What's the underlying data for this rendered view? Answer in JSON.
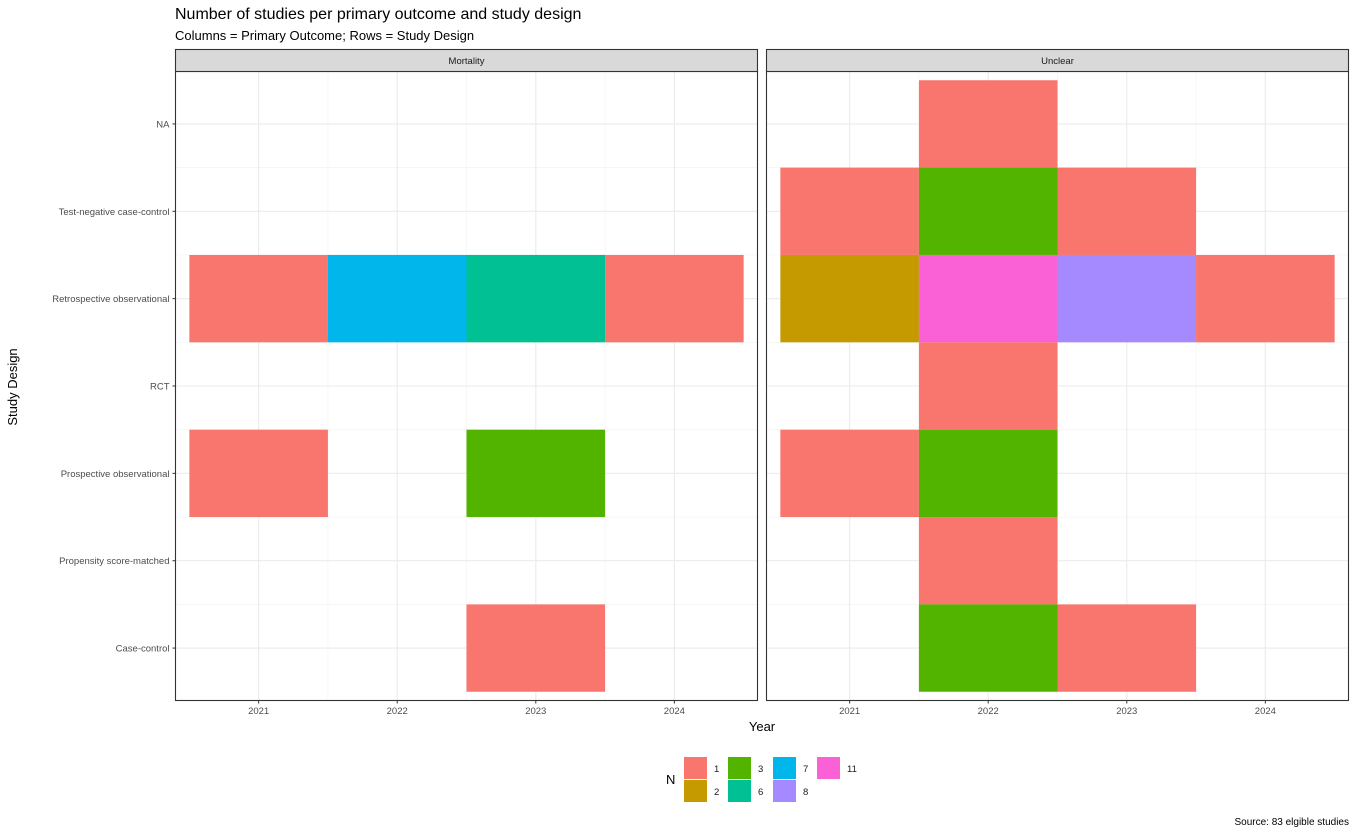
{
  "chart_data": {
    "type": "heatmap",
    "title": "Number of studies per primary outcome and study design",
    "subtitle": "Columns = Primary Outcome; Rows = Study Design",
    "xlabel": "Year",
    "ylabel": "Study Design",
    "caption": "Source: 83 elgible studies",
    "facets": [
      "Mortality",
      "Unclear"
    ],
    "x_categories": [
      "2021",
      "2022",
      "2023",
      "2024"
    ],
    "y_categories": [
      "NA",
      "Test-negative case-control",
      "Retrospective observational",
      "RCT",
      "Prospective observational",
      "Propensity score-matched",
      "Case-control"
    ],
    "legend": {
      "title": "N",
      "position": "bottom",
      "entries": [
        {
          "label": "1",
          "color": "#F8766D"
        },
        {
          "label": "2",
          "color": "#C49A00"
        },
        {
          "label": "3",
          "color": "#53B400"
        },
        {
          "label": "6",
          "color": "#00C094"
        },
        {
          "label": "7",
          "color": "#00B6EB"
        },
        {
          "label": "8",
          "color": "#A58AFF"
        },
        {
          "label": "11",
          "color": "#FB61D7"
        }
      ]
    },
    "grid": true,
    "cells": [
      {
        "facet": "Mortality",
        "x": "2021",
        "y": "Retrospective observational",
        "n": "1"
      },
      {
        "facet": "Mortality",
        "x": "2022",
        "y": "Retrospective observational",
        "n": "7"
      },
      {
        "facet": "Mortality",
        "x": "2023",
        "y": "Retrospective observational",
        "n": "6"
      },
      {
        "facet": "Mortality",
        "x": "2024",
        "y": "Retrospective observational",
        "n": "1"
      },
      {
        "facet": "Mortality",
        "x": "2021",
        "y": "Prospective observational",
        "n": "1"
      },
      {
        "facet": "Mortality",
        "x": "2023",
        "y": "Prospective observational",
        "n": "3"
      },
      {
        "facet": "Mortality",
        "x": "2023",
        "y": "Case-control",
        "n": "1"
      },
      {
        "facet": "Unclear",
        "x": "2022",
        "y": "NA",
        "n": "1"
      },
      {
        "facet": "Unclear",
        "x": "2021",
        "y": "Test-negative case-control",
        "n": "1"
      },
      {
        "facet": "Unclear",
        "x": "2022",
        "y": "Test-negative case-control",
        "n": "3"
      },
      {
        "facet": "Unclear",
        "x": "2023",
        "y": "Test-negative case-control",
        "n": "1"
      },
      {
        "facet": "Unclear",
        "x": "2021",
        "y": "Retrospective observational",
        "n": "2"
      },
      {
        "facet": "Unclear",
        "x": "2022",
        "y": "Retrospective observational",
        "n": "11"
      },
      {
        "facet": "Unclear",
        "x": "2023",
        "y": "Retrospective observational",
        "n": "8"
      },
      {
        "facet": "Unclear",
        "x": "2024",
        "y": "Retrospective observational",
        "n": "1"
      },
      {
        "facet": "Unclear",
        "x": "2022",
        "y": "RCT",
        "n": "1"
      },
      {
        "facet": "Unclear",
        "x": "2021",
        "y": "Prospective observational",
        "n": "1"
      },
      {
        "facet": "Unclear",
        "x": "2022",
        "y": "Prospective observational",
        "n": "3"
      },
      {
        "facet": "Unclear",
        "x": "2022",
        "y": "Propensity score-matched",
        "n": "1"
      },
      {
        "facet": "Unclear",
        "x": "2022",
        "y": "Case-control",
        "n": "3"
      },
      {
        "facet": "Unclear",
        "x": "2023",
        "y": "Case-control",
        "n": "1"
      }
    ]
  }
}
